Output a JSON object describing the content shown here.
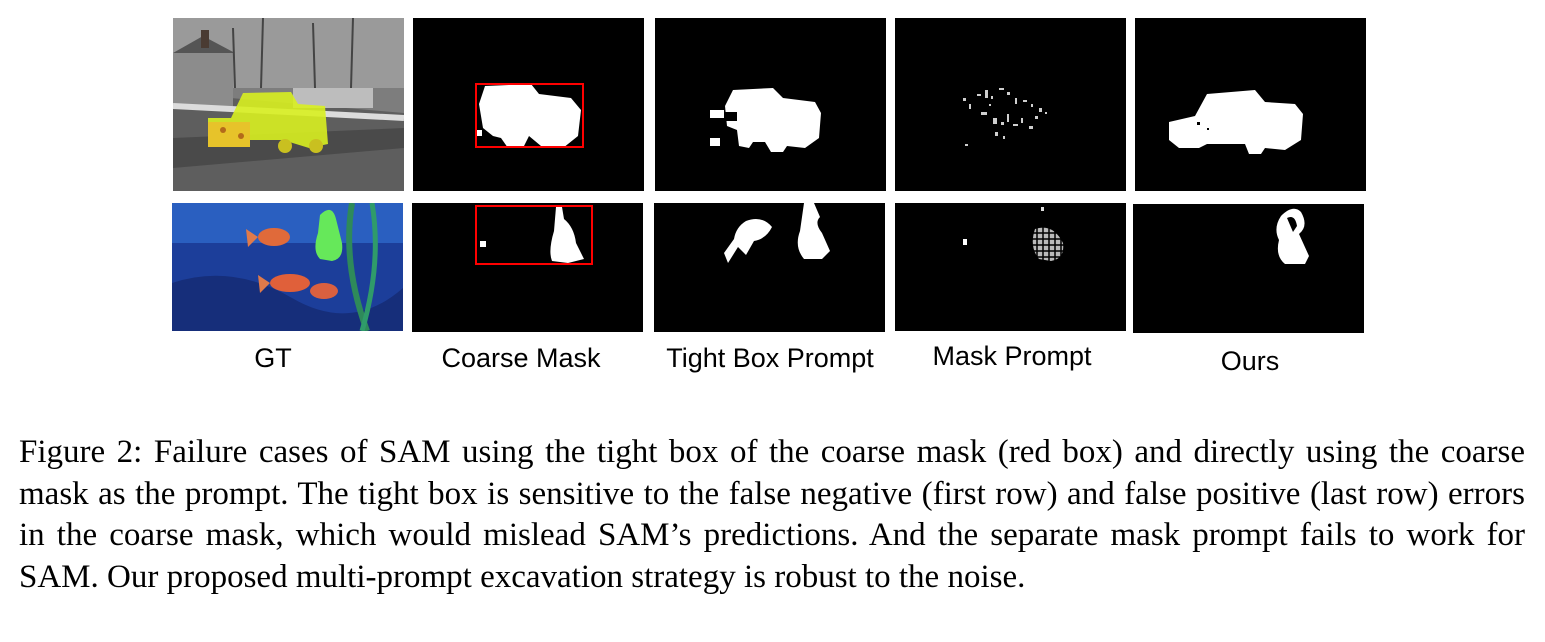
{
  "figure": {
    "columns": [
      "GT",
      "Coarse Mask",
      "Tight Box Prompt",
      "Mask Prompt",
      "Ours"
    ],
    "rows": [
      "truck scene",
      "goldfish scene"
    ],
    "colors": {
      "overlay": "#d8f020",
      "box": "#ff0000",
      "mask": "#ffffff",
      "background": "#000000"
    }
  },
  "caption": {
    "text": "Figure 2: Failure cases of SAM using the tight box of the coarse mask (red box) and directly using the coarse mask as the prompt. The tight box is sensitive to the false negative (first row) and false positive (last row) errors in the coarse mask, which would mislead SAM’s predictions. And the separate mask prompt fails to work for SAM. Our proposed multi-prompt excavation strategy is robust to the noise."
  }
}
